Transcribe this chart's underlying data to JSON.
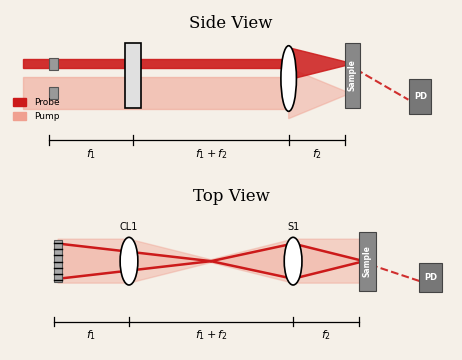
{
  "title_side": "Side View",
  "title_top": "Top View",
  "bg_color": "#f5f0e8",
  "probe_color": "#cc1a1a",
  "pump_color": "#f0a090",
  "probe_label": "Probe",
  "pump_label": "Pump",
  "sample_color": "#888888",
  "pd_color": "#777777",
  "cl1_label": "CL1",
  "s1_label": "S1",
  "sample_label": "Sample",
  "pd_label": "PD"
}
